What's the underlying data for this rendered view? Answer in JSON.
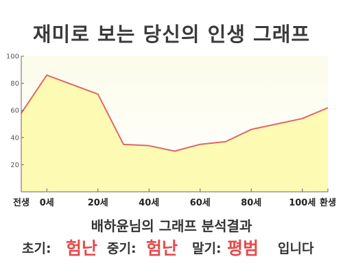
{
  "title": "재미로 보는 당신의 인생 그래프",
  "analysis_title": "배하윤님의 그래프 분석결과",
  "summary": {
    "early_label": "초기:",
    "early_value": "험난",
    "middle_label": "중기:",
    "middle_value": "험난",
    "late_label": "말기:",
    "late_value": "평범",
    "ending": "입니다"
  },
  "colors": {
    "line": "#e26464",
    "fill": "#fdfab3",
    "plot_bg_top": "#fcfce8",
    "accent_red": "#e64a4a"
  },
  "chart_data": {
    "type": "area",
    "title": "재미로 보는 당신의 인생 그래프",
    "xlabel": "",
    "ylabel": "",
    "x_tick_labels": [
      "전생",
      "0세",
      "20세",
      "40세",
      "60세",
      "80세",
      "100세",
      "환생"
    ],
    "x_ticks": [
      -10,
      0,
      20,
      40,
      60,
      80,
      100,
      110
    ],
    "xlim": [
      -10,
      110
    ],
    "ylim": [
      0,
      100
    ],
    "y_ticks": [
      20,
      40,
      60,
      80,
      100
    ],
    "grid": false,
    "legend": "none",
    "series": [
      {
        "x": [
          -10,
          0,
          20,
          30,
          40,
          50,
          60,
          70,
          80,
          90,
          100,
          110
        ],
        "y": [
          58,
          86,
          72,
          35,
          34,
          30,
          35,
          37,
          46,
          50,
          54,
          62
        ]
      }
    ]
  }
}
